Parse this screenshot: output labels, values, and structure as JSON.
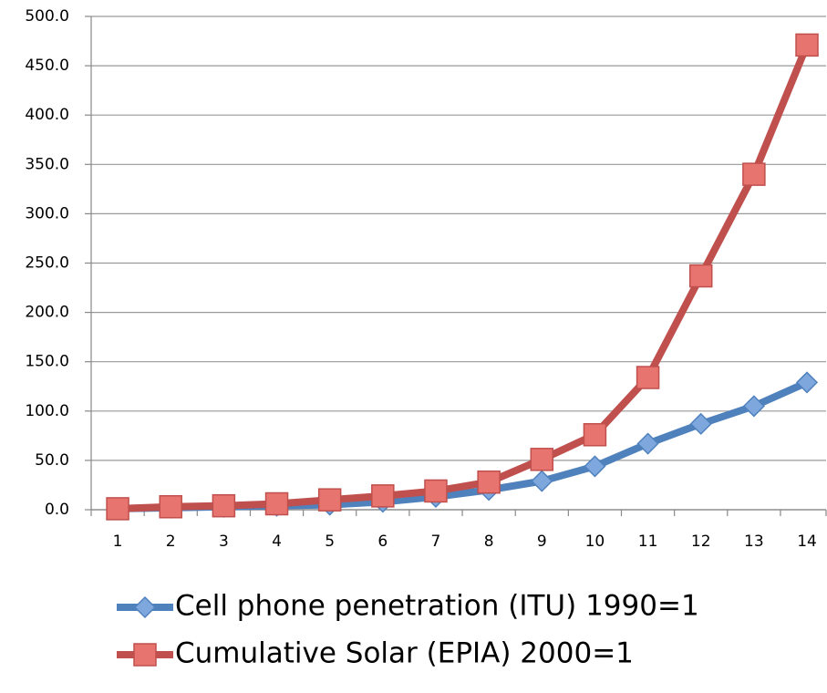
{
  "chart_data": {
    "type": "line",
    "categories": [
      "1",
      "2",
      "3",
      "4",
      "5",
      "6",
      "7",
      "8",
      "9",
      "10",
      "11",
      "12",
      "13",
      "14"
    ],
    "series": [
      {
        "name": "Cell phone penetration (ITU) 1990=1",
        "color": "#4f81bd",
        "marker": "diamond",
        "values": [
          1,
          2,
          3,
          4,
          5,
          8,
          13,
          20,
          29,
          44,
          67,
          87,
          105,
          129
        ]
      },
      {
        "name": "Cumulative Solar (EPIA) 2000=1",
        "color": "#c0504d",
        "marker": "square",
        "values": [
          1,
          3,
          4,
          6,
          10,
          14,
          19,
          28,
          51,
          76,
          134,
          237,
          340,
          471
        ]
      }
    ],
    "ylim": [
      0,
      500
    ],
    "yticks": [
      {
        "value": 0,
        "label": "0.0"
      },
      {
        "value": 50,
        "label": "50.0"
      },
      {
        "value": 100,
        "label": "100.0"
      },
      {
        "value": 150,
        "label": "150.0"
      },
      {
        "value": 200,
        "label": "200.0"
      },
      {
        "value": 250,
        "label": "250.0"
      },
      {
        "value": 300,
        "label": "300.0"
      },
      {
        "value": 350,
        "label": "350.0"
      },
      {
        "value": 400,
        "label": "400.0"
      },
      {
        "value": 450,
        "label": "450.0"
      },
      {
        "value": 500,
        "label": "500.0"
      }
    ],
    "grid": true,
    "legend": "bottom"
  }
}
